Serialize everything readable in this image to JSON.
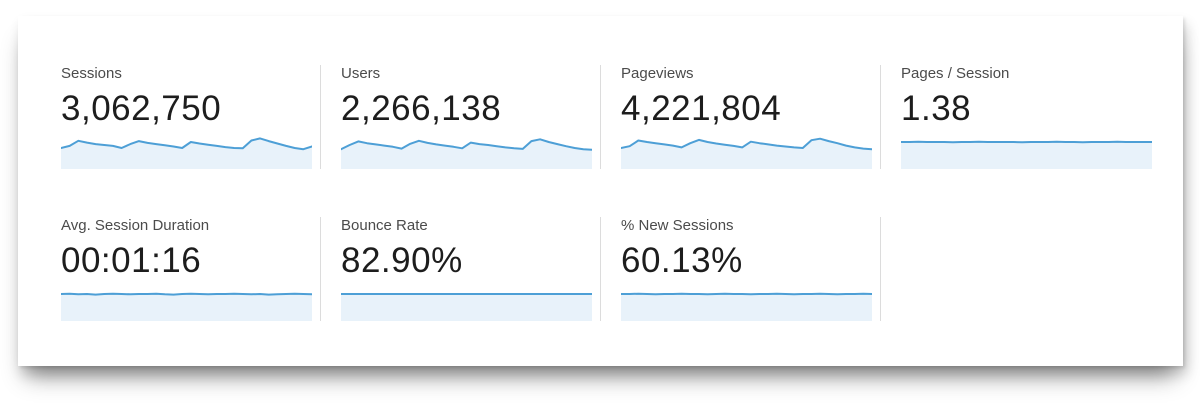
{
  "metrics": [
    {
      "label": "Sessions",
      "value": "3,062,750"
    },
    {
      "label": "Users",
      "value": "2,266,138"
    },
    {
      "label": "Pageviews",
      "value": "4,221,804"
    },
    {
      "label": "Pages / Session",
      "value": "1.38"
    },
    {
      "label": "Avg. Session Duration",
      "value": "00:01:16"
    },
    {
      "label": "Bounce Rate",
      "value": "82.90%"
    },
    {
      "label": "% New Sessions",
      "value": "60.13%"
    }
  ],
  "chart_data": {
    "type": "area",
    "series": [
      {
        "name": "Sessions",
        "values": [
          0.5,
          0.57,
          0.74,
          0.68,
          0.63,
          0.6,
          0.57,
          0.5,
          0.63,
          0.73,
          0.67,
          0.63,
          0.59,
          0.55,
          0.5,
          0.7,
          0.65,
          0.61,
          0.57,
          0.53,
          0.5,
          0.49,
          0.75,
          0.82,
          0.73,
          0.65,
          0.57,
          0.5,
          0.46,
          0.55
        ]
      },
      {
        "name": "Users",
        "values": [
          0.46,
          0.6,
          0.72,
          0.66,
          0.62,
          0.58,
          0.54,
          0.48,
          0.64,
          0.74,
          0.67,
          0.62,
          0.58,
          0.54,
          0.49,
          0.68,
          0.63,
          0.6,
          0.56,
          0.52,
          0.49,
          0.47,
          0.73,
          0.79,
          0.7,
          0.63,
          0.56,
          0.5,
          0.46,
          0.44
        ]
      },
      {
        "name": "Pageviews",
        "values": [
          0.5,
          0.56,
          0.75,
          0.7,
          0.66,
          0.62,
          0.58,
          0.52,
          0.66,
          0.77,
          0.7,
          0.65,
          0.61,
          0.57,
          0.52,
          0.71,
          0.66,
          0.62,
          0.58,
          0.55,
          0.52,
          0.5,
          0.76,
          0.81,
          0.73,
          0.66,
          0.58,
          0.52,
          0.48,
          0.46
        ]
      },
      {
        "name": "Pages / Session",
        "values": [
          0.7,
          0.7,
          0.71,
          0.7,
          0.7,
          0.7,
          0.69,
          0.7,
          0.7,
          0.71,
          0.7,
          0.7,
          0.7,
          0.7,
          0.69,
          0.7,
          0.7,
          0.7,
          0.71,
          0.7,
          0.7,
          0.69,
          0.7,
          0.7,
          0.7,
          0.71,
          0.7,
          0.7,
          0.7,
          0.7
        ]
      },
      {
        "name": "Avg. Session Duration",
        "values": [
          0.7,
          0.71,
          0.69,
          0.7,
          0.68,
          0.7,
          0.71,
          0.7,
          0.69,
          0.7,
          0.7,
          0.71,
          0.69,
          0.68,
          0.7,
          0.71,
          0.7,
          0.69,
          0.7,
          0.7,
          0.71,
          0.7,
          0.69,
          0.7,
          0.68,
          0.69,
          0.7,
          0.71,
          0.7,
          0.69
        ]
      },
      {
        "name": "Bounce Rate",
        "values": [
          0.7,
          0.7,
          0.7,
          0.7,
          0.7,
          0.7,
          0.7,
          0.7,
          0.7,
          0.7,
          0.7,
          0.7,
          0.7,
          0.7,
          0.7,
          0.7,
          0.7,
          0.7,
          0.7,
          0.7,
          0.7,
          0.7,
          0.7,
          0.7,
          0.7,
          0.7,
          0.7,
          0.7,
          0.7,
          0.7
        ]
      },
      {
        "name": "% New Sessions",
        "values": [
          0.7,
          0.7,
          0.71,
          0.7,
          0.69,
          0.7,
          0.7,
          0.71,
          0.7,
          0.7,
          0.69,
          0.7,
          0.71,
          0.7,
          0.7,
          0.69,
          0.7,
          0.7,
          0.71,
          0.7,
          0.69,
          0.7,
          0.7,
          0.71,
          0.7,
          0.69,
          0.7,
          0.7,
          0.71,
          0.7
        ]
      }
    ]
  },
  "colors": {
    "spark_stroke": "#4d9fd6",
    "spark_fill": "#e8f2fa",
    "divider": "#dcdcdc",
    "label_text": "#4b4b4b",
    "value_text": "#1d1d1d"
  }
}
